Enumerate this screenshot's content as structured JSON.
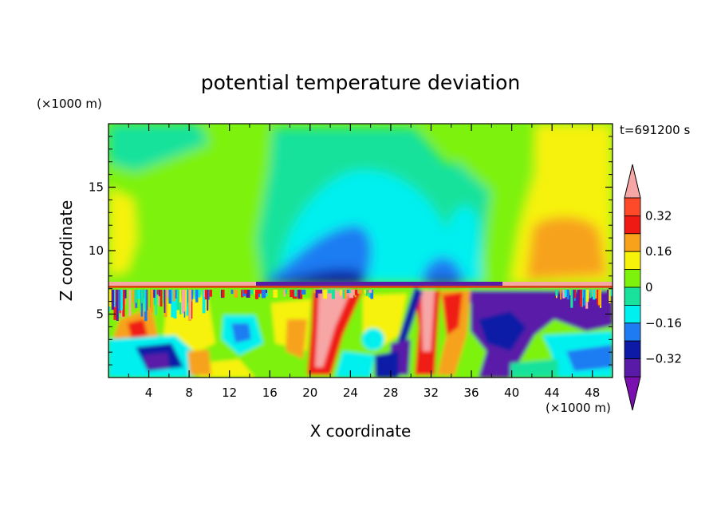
{
  "chart_data": {
    "type": "heatmap",
    "title": "potential temperature deviation",
    "xlabel": "X coordinate",
    "ylabel": "Z coordinate",
    "x_unit": "(×1000 m)",
    "y_unit": "(×1000 m)",
    "time_label": "t=691200 s",
    "xlim": [
      0,
      50
    ],
    "ylim": [
      0,
      20
    ],
    "x_ticks": [
      4,
      8,
      12,
      16,
      20,
      24,
      28,
      32,
      36,
      40,
      44,
      48
    ],
    "y_ticks": [
      5,
      10,
      15
    ],
    "colorbar": {
      "levels": [
        -0.4,
        -0.32,
        -0.24,
        -0.16,
        -0.08,
        0,
        0.08,
        0.16,
        0.24,
        0.32,
        0.4
      ],
      "labeled_ticks": [
        "0.32",
        "0.16",
        "0",
        "−0.16",
        "−0.32"
      ],
      "labeled_values": [
        0.32,
        0.16,
        0,
        -0.16,
        -0.32
      ],
      "colors": [
        "#7b10b0",
        "#5a1aa8",
        "#0d1aa6",
        "#1f7bf2",
        "#00f0f0",
        "#18e29c",
        "#7df20c",
        "#f6f20a",
        "#f7a21a",
        "#f01a14",
        "#ff4a2a",
        "#f7a6a6"
      ],
      "extend": "both"
    },
    "regions": {
      "upper_layer_z_range": [
        7.3,
        20
      ],
      "boundary_z": 7.3,
      "lower_layer": "highly variable deviations from -0.4 to 0.4"
    }
  }
}
